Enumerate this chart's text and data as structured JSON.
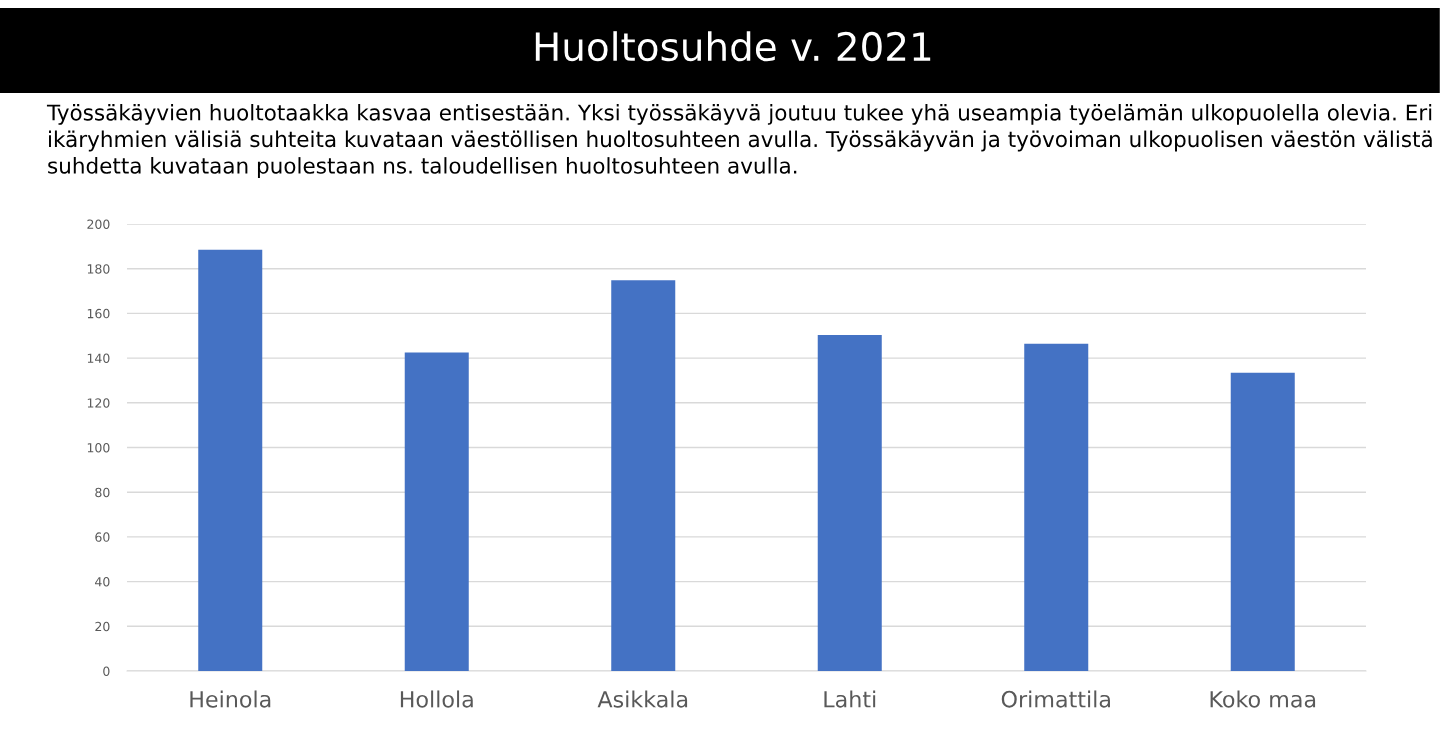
{
  "chart_data": {
    "type": "bar",
    "title": "Huoltosuhde v. 2021",
    "subtitle": "Työssäkäyvien huoltotaakka kasvaa entisestään. Yksi työssäkäyvä joutuu tukee yhä useampia työelämän ulkopuolella olevia. Eri ikäryhmien välisiä suhteita kuvataan väestöllisen huoltosuhteen avulla. Työssäkäyvän ja työvoiman ulkopuolisen väestön välistä suhdetta kuvataan puolestaan ns. taloudellisen huoltosuhteen avulla.",
    "categories": [
      "Heinola",
      "Hollola",
      "Asikkala",
      "Lahti",
      "Orimattila",
      "Koko maa"
    ],
    "values": [
      188.5,
      142.5,
      174.8,
      150.3,
      146.4,
      133.4
    ],
    "color": "#4472c4",
    "ylim": [
      0,
      200
    ],
    "yticks": [
      0,
      20,
      40,
      60,
      80,
      100,
      120,
      140,
      160,
      180,
      200
    ],
    "grid": "y"
  }
}
